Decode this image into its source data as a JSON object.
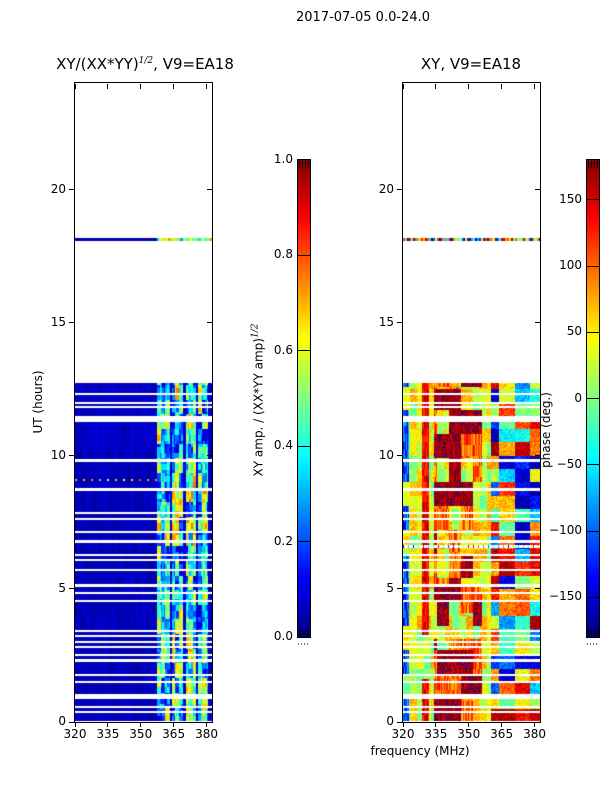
{
  "figure_title": "2017-07-05 0.0-24.0",
  "chart_data": {
    "type": "heatmap",
    "colormap": "jet",
    "xlim": [
      320,
      382.5
    ],
    "ylim": [
      0,
      24
    ],
    "x_ticks": [
      320,
      335,
      350,
      365,
      380
    ],
    "y_ticks": [
      0,
      5,
      10,
      15,
      20
    ],
    "xlabel": "frequency (MHz)",
    "ylabel": "UT (hours)",
    "time_coverage": {
      "data_block_hours": [
        0.05,
        12.75
      ],
      "scan_line_hours": [
        18.05,
        18.17
      ],
      "amp_dotted_line_hour": 9.1,
      "phase_dotted_line_hour": 6.6,
      "gaps": [
        [
          12.32,
          0.1
        ],
        [
          11.98,
          0.08
        ],
        [
          11.82,
          0.08
        ],
        [
          11.38,
          0.22
        ],
        [
          9.82,
          0.1
        ],
        [
          8.72,
          0.12
        ],
        [
          7.85,
          0.1
        ],
        [
          7.63,
          0.08
        ],
        [
          7.12,
          0.08
        ],
        [
          6.78,
          0.1
        ],
        [
          6.28,
          0.08
        ],
        [
          6.08,
          0.08
        ],
        [
          5.72,
          0.08
        ],
        [
          5.12,
          0.12
        ],
        [
          4.86,
          0.08
        ],
        [
          4.56,
          0.08
        ],
        [
          3.42,
          0.1
        ],
        [
          3.22,
          0.08
        ],
        [
          3.02,
          0.08
        ],
        [
          2.82,
          0.08
        ],
        [
          2.52,
          0.08
        ],
        [
          2.3,
          0.1
        ],
        [
          1.76,
          0.1
        ],
        [
          1.5,
          0.08
        ],
        [
          0.96,
          0.18
        ],
        [
          0.56,
          0.08
        ],
        [
          0.36,
          0.08
        ]
      ]
    },
    "panels": [
      {
        "id": "amp",
        "kind": "amp",
        "seed": 7,
        "title_main": "XY/(XX*YY)",
        "title_sup": "1/2",
        "title_rest": ", V9=EA18",
        "bright_band_mhz": [
          357.5,
          380.5
        ],
        "band_separators_mhz": [
          [
            363.2,
            364.4
          ],
          [
            369.3,
            370.5
          ],
          [
            375.4,
            376.3
          ]
        ],
        "colorbar": {
          "label_main": "XY amp. / (XX*YY amp)",
          "label_sup": "1/2",
          "range": [
            0,
            1
          ],
          "tick_labels": [
            "1.0",
            "0.8",
            "0.6",
            "0.4",
            "0.2",
            "0.0"
          ],
          "tick_values": [
            1.0,
            0.8,
            0.6,
            0.4,
            0.2,
            0.0
          ]
        }
      },
      {
        "id": "phase",
        "kind": "phase",
        "seed": 13,
        "title_main": "XY, V9=EA18",
        "blue_edge_mhz": 322.8,
        "orange_band_mhz": [
          328.5,
          332
        ],
        "red_blob_mhz": [
          334,
          356
        ],
        "blob_time_ranges": [
          [
            0,
            3.1
          ],
          [
            4.1,
            5.1
          ],
          [
            6.3,
            12.5
          ]
        ],
        "streak_region_mhz": 360,
        "colorbar": {
          "label_main": "phase (deg.)",
          "label_sup": "",
          "range": [
            -180,
            180
          ],
          "tick_labels": [
            "150",
            "100",
            "50",
            "0",
            "−50",
            "−100",
            "−150"
          ],
          "tick_values": [
            150,
            100,
            50,
            0,
            -50,
            -100,
            -150
          ]
        }
      }
    ]
  }
}
